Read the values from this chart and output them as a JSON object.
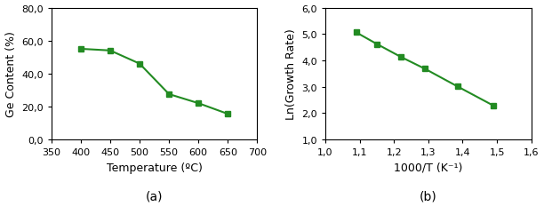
{
  "panel_a": {
    "x": [
      400,
      450,
      500,
      550,
      600,
      650
    ],
    "y": [
      55.0,
      54.0,
      46.0,
      27.5,
      22.0,
      15.5
    ],
    "xlabel": "Temperature (ºC)",
    "ylabel": "Ge Content (%)",
    "xlim": [
      350,
      700
    ],
    "ylim": [
      0.0,
      80.0
    ],
    "xticks": [
      350,
      400,
      450,
      500,
      550,
      600,
      650,
      700
    ],
    "yticks": [
      0.0,
      20.0,
      40.0,
      60.0,
      80.0
    ],
    "label": "(a)"
  },
  "panel_b": {
    "x": [
      1.09,
      1.15,
      1.22,
      1.29,
      1.385,
      1.49
    ],
    "y": [
      5.06,
      4.62,
      4.13,
      3.68,
      3.01,
      2.28
    ],
    "xlabel": "1000/T (K⁻¹)",
    "ylabel": "Ln(Growth Rate)",
    "xlim": [
      1.0,
      1.6
    ],
    "ylim": [
      1.0,
      6.0
    ],
    "xticks": [
      1.0,
      1.1,
      1.2,
      1.3,
      1.4,
      1.5,
      1.6
    ],
    "yticks": [
      1.0,
      2.0,
      3.0,
      4.0,
      5.0,
      6.0
    ],
    "label": "(b)"
  },
  "line_color": "#228B22",
  "marker": "s",
  "marker_size": 4,
  "line_width": 1.5,
  "tick_label_size": 8,
  "axis_label_size": 9,
  "sublabel_size": 10
}
